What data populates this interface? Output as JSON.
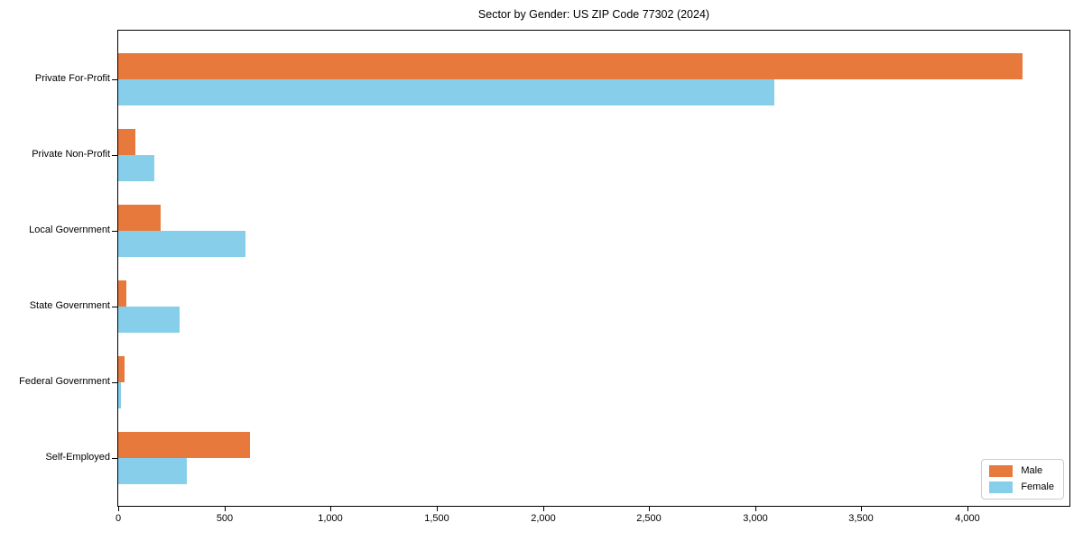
{
  "chart_data": {
    "type": "bar",
    "orientation": "horizontal",
    "title": "Sector by Gender: US ZIP Code 77302 (2024)",
    "categories": [
      "Private For-Profit",
      "Private Non-Profit",
      "Local Government",
      "State Government",
      "Federal Government",
      "Self-Employed"
    ],
    "series": [
      {
        "name": "Male",
        "color": "#e8793d",
        "values": [
          4260,
          80,
          200,
          40,
          30,
          620
        ]
      },
      {
        "name": "Female",
        "color": "#87ceeb",
        "values": [
          3090,
          170,
          600,
          290,
          12,
          325
        ]
      }
    ],
    "xlim": [
      0,
      4480
    ],
    "x_ticks": [
      0,
      500,
      1000,
      1500,
      2000,
      2500,
      3000,
      3500,
      4000
    ],
    "x_tick_labels": [
      "0",
      "500",
      "1,000",
      "1,500",
      "2,000",
      "2,500",
      "3,000",
      "3,500",
      "4,000"
    ],
    "xlabel": "",
    "ylabel": "",
    "grid": false,
    "legend_position": "lower right",
    "colors": {
      "background": "#ffffff",
      "axis": "#000000"
    }
  }
}
